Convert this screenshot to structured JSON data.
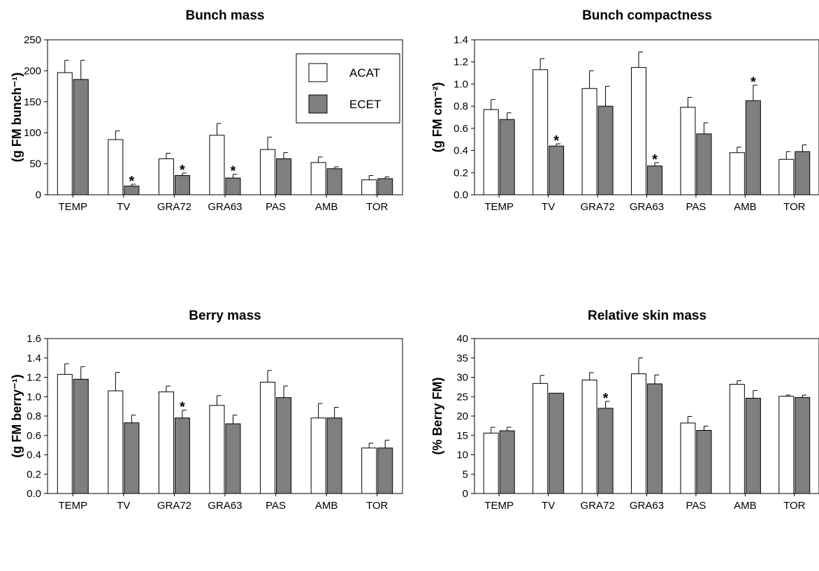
{
  "legend": {
    "items": [
      {
        "label": "ACAT",
        "color": "#ffffff"
      },
      {
        "label": "ECET",
        "color": "#7f7f7f"
      }
    ]
  },
  "colors": {
    "acat": "#ffffff",
    "ecet": "#7f7f7f",
    "stroke": "#000000"
  },
  "chart_data": [
    {
      "type": "bar",
      "title": "Bunch mass",
      "ylabel": "(g FM bunch⁻¹)",
      "categories": [
        "TEMP",
        "TV",
        "GRA72",
        "GRA63",
        "PAS",
        "AMB",
        "TOR"
      ],
      "ylim": [
        0,
        250
      ],
      "yticks": [
        0,
        50,
        100,
        150,
        200,
        250
      ],
      "tick_labels": [
        "0",
        "50",
        "100",
        "150",
        "200",
        "250"
      ],
      "legend_position": "top-right",
      "series": [
        {
          "name": "ACAT",
          "values": [
            197,
            89,
            58,
            96,
            73,
            52,
            24
          ],
          "errors": [
            20,
            14,
            9,
            19,
            20,
            9,
            7
          ]
        },
        {
          "name": "ECET",
          "values": [
            186,
            14,
            31,
            27,
            58,
            42,
            26
          ],
          "errors": [
            31,
            3,
            4,
            6,
            10,
            3,
            3
          ]
        }
      ],
      "significance": [
        {
          "category": "TV",
          "series": "ECET",
          "label": "*"
        },
        {
          "category": "GRA72",
          "series": "ECET",
          "label": "*"
        },
        {
          "category": "GRA63",
          "series": "ECET",
          "label": "*"
        }
      ]
    },
    {
      "type": "bar",
      "title": "Bunch compactness",
      "ylabel": "(g FM cm⁻²)",
      "categories": [
        "TEMP",
        "TV",
        "GRA72",
        "GRA63",
        "PAS",
        "AMB",
        "TOR"
      ],
      "ylim": [
        0,
        1.4
      ],
      "yticks": [
        0,
        0.2,
        0.4,
        0.6,
        0.8,
        1.0,
        1.2,
        1.4
      ],
      "tick_labels": [
        "0.0",
        "0.2",
        "0.4",
        "0.6",
        "0.8",
        "1.0",
        "1.2",
        "1.4"
      ],
      "series": [
        {
          "name": "ACAT",
          "values": [
            0.77,
            1.13,
            0.96,
            1.15,
            0.79,
            0.38,
            0.32
          ],
          "errors": [
            0.09,
            0.1,
            0.16,
            0.14,
            0.09,
            0.05,
            0.07
          ]
        },
        {
          "name": "ECET",
          "values": [
            0.68,
            0.44,
            0.8,
            0.26,
            0.55,
            0.85,
            0.39
          ],
          "errors": [
            0.06,
            0.02,
            0.18,
            0.03,
            0.1,
            0.14,
            0.06
          ]
        }
      ],
      "significance": [
        {
          "category": "TV",
          "series": "ECET",
          "label": "*"
        },
        {
          "category": "GRA63",
          "series": "ECET",
          "label": "*"
        },
        {
          "category": "AMB",
          "series": "ECET",
          "label": "*"
        }
      ]
    },
    {
      "type": "bar",
      "title": "Berry mass",
      "ylabel": "(g FM berry⁻¹)",
      "categories": [
        "TEMP",
        "TV",
        "GRA72",
        "GRA63",
        "PAS",
        "AMB",
        "TOR"
      ],
      "ylim": [
        0,
        1.6
      ],
      "yticks": [
        0,
        0.2,
        0.4,
        0.6,
        0.8,
        1.0,
        1.2,
        1.4,
        1.6
      ],
      "tick_labels": [
        "0.0",
        "0.2",
        "0.4",
        "0.6",
        "0.8",
        "1.0",
        "1.2",
        "1.4",
        "1.6"
      ],
      "series": [
        {
          "name": "ACAT",
          "values": [
            1.23,
            1.06,
            1.05,
            0.91,
            1.15,
            0.78,
            0.47
          ],
          "errors": [
            0.11,
            0.19,
            0.06,
            0.1,
            0.12,
            0.15,
            0.05
          ]
        },
        {
          "name": "ECET",
          "values": [
            1.18,
            0.73,
            0.78,
            0.72,
            0.99,
            0.78,
            0.47
          ],
          "errors": [
            0.13,
            0.08,
            0.08,
            0.09,
            0.12,
            0.11,
            0.08
          ]
        }
      ],
      "significance": [
        {
          "category": "GRA72",
          "series": "ECET",
          "label": "*"
        }
      ]
    },
    {
      "type": "bar",
      "title": "Relative skin mass",
      "ylabel": "(% Berry FM)",
      "categories": [
        "TEMP",
        "TV",
        "GRA72",
        "GRA63",
        "PAS",
        "AMB",
        "TOR"
      ],
      "ylim": [
        0,
        40
      ],
      "yticks": [
        0,
        5,
        10,
        15,
        20,
        25,
        30,
        35,
        40
      ],
      "tick_labels": [
        "0",
        "5",
        "10",
        "15",
        "20",
        "25",
        "30",
        "35",
        "40"
      ],
      "series": [
        {
          "name": "ACAT",
          "values": [
            15.6,
            28.4,
            29.3,
            30.9,
            18.2,
            28.2,
            25.1
          ],
          "errors": [
            1.5,
            2.1,
            1.9,
            4.1,
            1.7,
            0.9,
            0.3
          ]
        },
        {
          "name": "ECET",
          "values": [
            16.2,
            25.9,
            22.0,
            28.3,
            16.3,
            24.6,
            24.8
          ],
          "errors": [
            0.9,
            0,
            1.8,
            2.3,
            1.1,
            2.0,
            0.6
          ]
        }
      ],
      "significance": [
        {
          "category": "GRA72",
          "series": "ECET",
          "label": "*"
        }
      ]
    }
  ]
}
